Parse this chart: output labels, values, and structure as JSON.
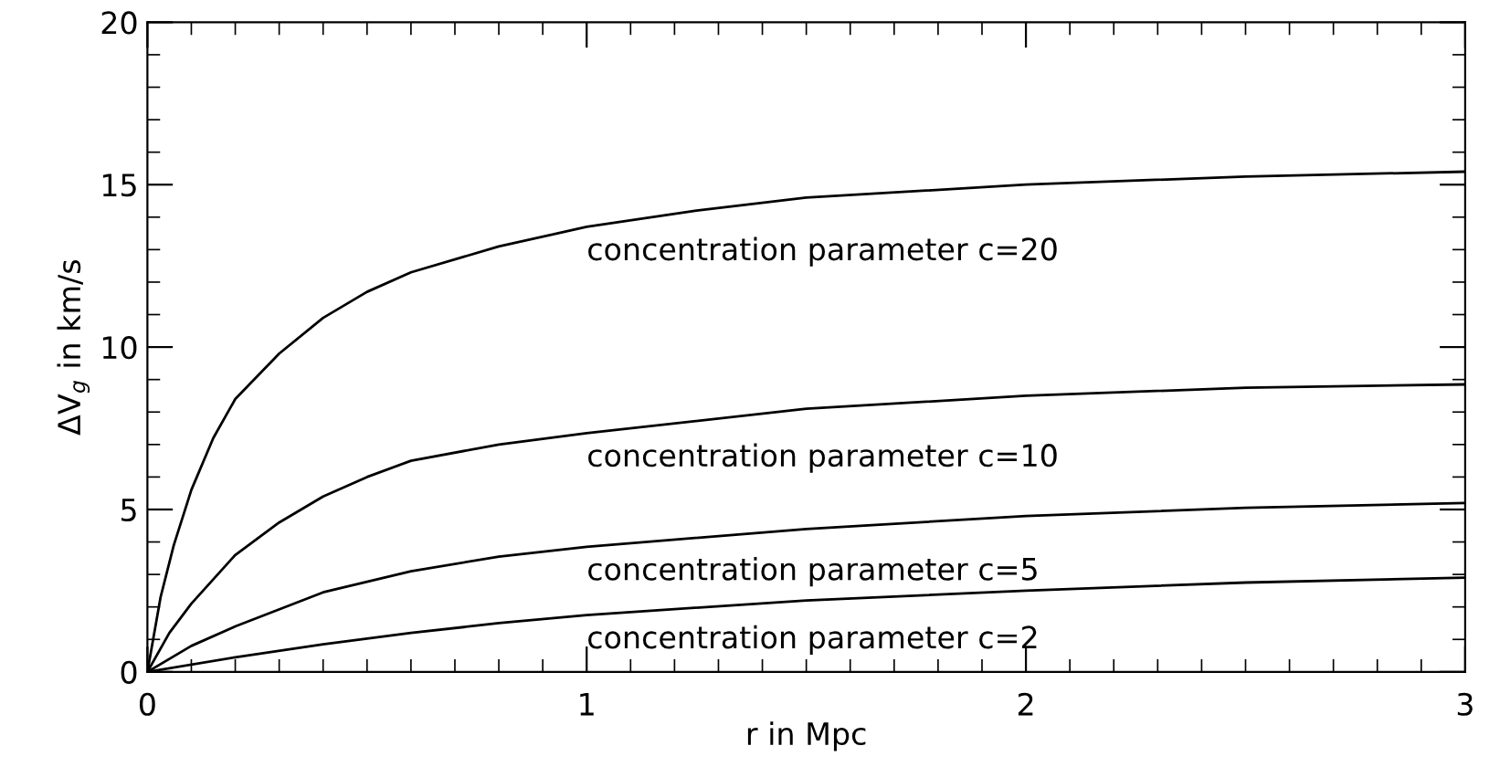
{
  "chart_data": {
    "type": "line",
    "xlabel": "r in Mpc",
    "ylabel": "ΔV$_{g}$ in km/s",
    "xlim": [
      0,
      3
    ],
    "xticks": [
      0,
      1,
      2,
      3
    ],
    "ylim": [
      0,
      20
    ],
    "yticks": [
      0,
      5,
      10,
      15,
      20
    ],
    "grid": false,
    "legend": false,
    "marker": "none",
    "line_style": "solid",
    "series": [
      {
        "name": "concentration parameter c=20",
        "color": "#000000",
        "x": [
          0,
          0.03,
          0.06,
          0.1,
          0.15,
          0.2,
          0.3,
          0.4,
          0.5,
          0.6,
          0.8,
          1.0,
          1.25,
          1.5,
          2.0,
          2.5,
          3.0
        ],
        "values": [
          0,
          2.3,
          3.9,
          5.6,
          7.2,
          8.4,
          9.8,
          10.9,
          11.7,
          12.3,
          13.1,
          13.7,
          14.2,
          14.6,
          15.0,
          15.25,
          15.4
        ]
      },
      {
        "name": "concentration parameter c=10",
        "color": "#000000",
        "x": [
          0,
          0.05,
          0.1,
          0.2,
          0.3,
          0.4,
          0.5,
          0.6,
          0.8,
          1.0,
          1.5,
          2.0,
          2.5,
          3.0
        ],
        "values": [
          0,
          1.2,
          2.1,
          3.6,
          4.6,
          5.4,
          6.0,
          6.5,
          7.0,
          7.35,
          8.1,
          8.5,
          8.75,
          8.85
        ]
      },
      {
        "name": "concentration parameter c=5",
        "color": "#000000",
        "x": [
          0,
          0.1,
          0.2,
          0.4,
          0.6,
          0.8,
          1.0,
          1.5,
          2.0,
          2.5,
          3.0
        ],
        "values": [
          0,
          0.8,
          1.4,
          2.45,
          3.1,
          3.55,
          3.85,
          4.4,
          4.8,
          5.05,
          5.2
        ]
      },
      {
        "name": "concentration parameter c=2",
        "color": "#000000",
        "x": [
          0,
          0.2,
          0.4,
          0.6,
          0.8,
          1.0,
          1.5,
          2.0,
          2.5,
          3.0
        ],
        "values": [
          0,
          0.45,
          0.85,
          1.2,
          1.5,
          1.75,
          2.2,
          2.5,
          2.75,
          2.9
        ]
      }
    ]
  }
}
